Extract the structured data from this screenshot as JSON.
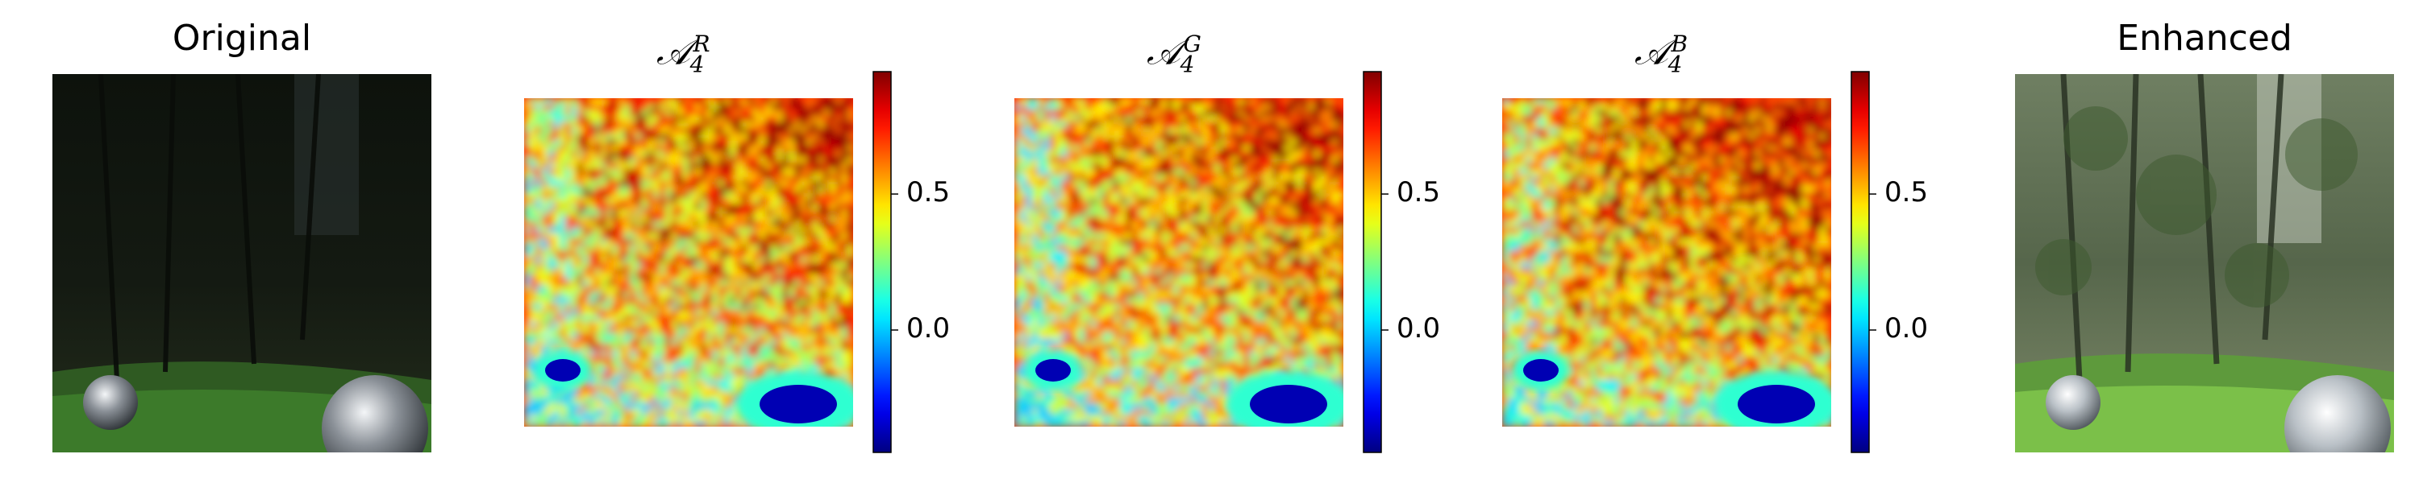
{
  "chart_data": [
    {
      "type": "image",
      "title": "Original"
    },
    {
      "type": "heatmap",
      "title_base": "𝒜",
      "title_sub": "4",
      "title_sup": "R",
      "colorbar": {
        "ticks": [
          "0.0",
          "0.5"
        ],
        "vmin": -0.45,
        "vmax": 0.95,
        "colormap": "jet"
      }
    },
    {
      "type": "heatmap",
      "title_base": "𝒜",
      "title_sub": "4",
      "title_sup": "G",
      "colorbar": {
        "ticks": [
          "0.0",
          "0.5"
        ],
        "vmin": -0.45,
        "vmax": 0.95,
        "colormap": "jet"
      }
    },
    {
      "type": "heatmap",
      "title_base": "𝒜",
      "title_sub": "4",
      "title_sup": "B",
      "colorbar": {
        "ticks": [
          "0.0",
          "0.5"
        ],
        "vmin": -0.45,
        "vmax": 0.95,
        "colormap": "jet"
      }
    },
    {
      "type": "image",
      "title": "Enhanced"
    }
  ]
}
